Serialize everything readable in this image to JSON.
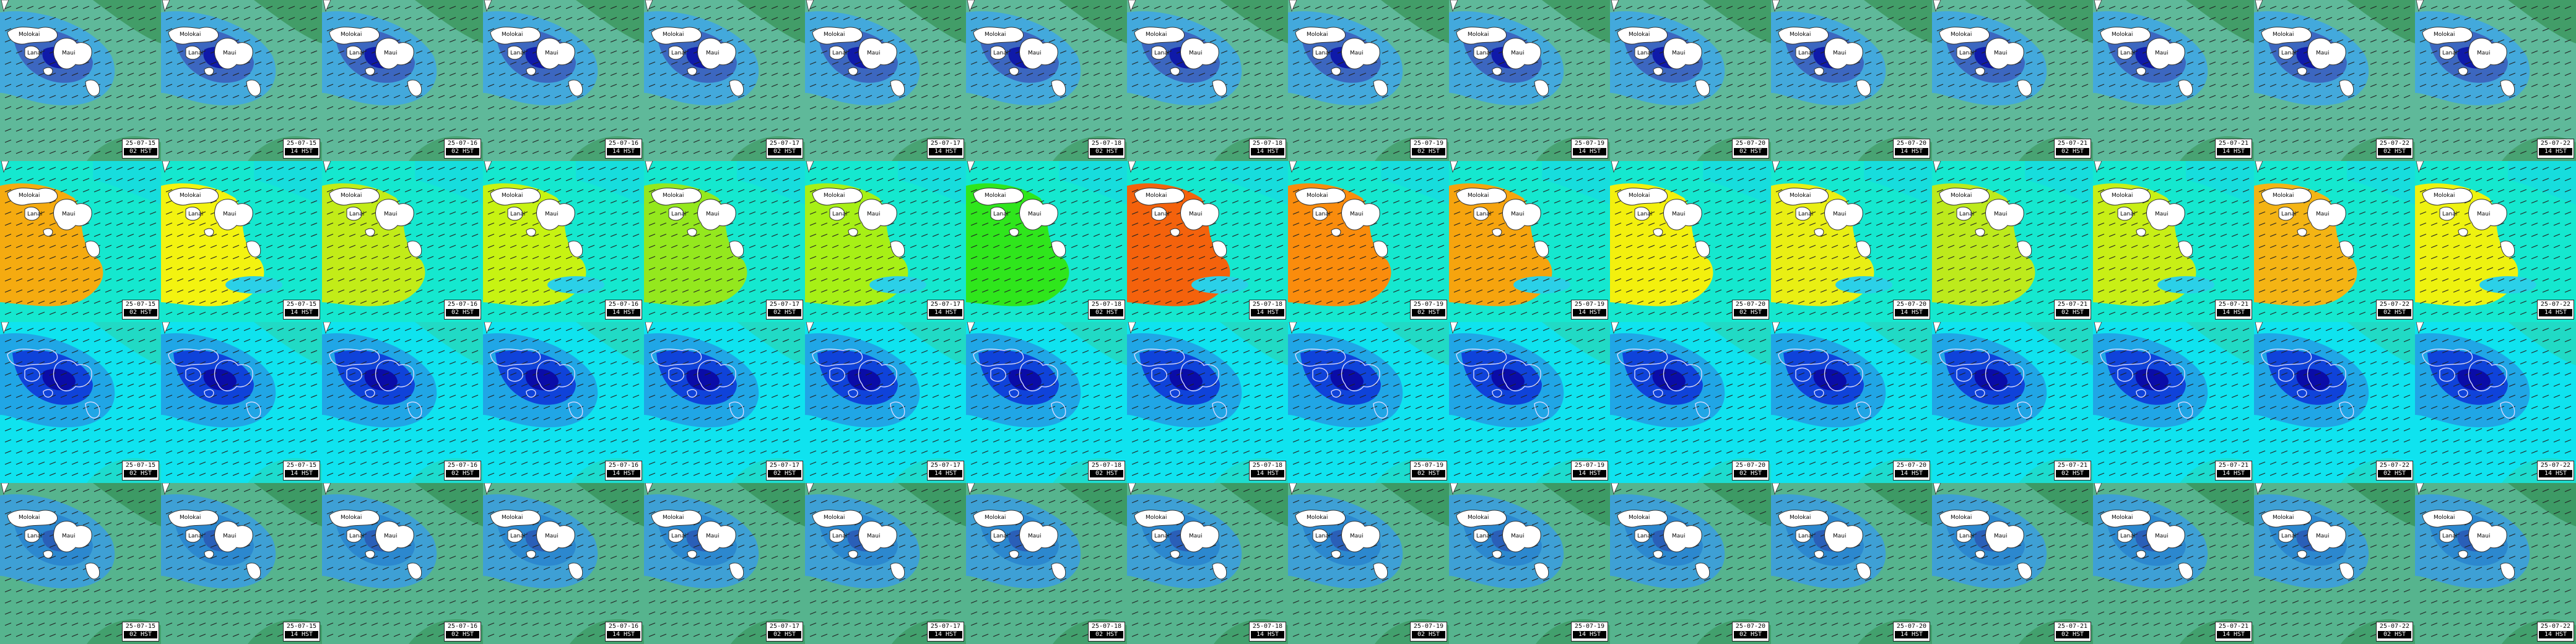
{
  "island_labels": {
    "lanai": "Lanai",
    "molokai": "Molokai",
    "maui": "Maui"
  },
  "timestamps": [
    {
      "date": "25-07-15",
      "hour": "02 HST"
    },
    {
      "date": "25-07-15",
      "hour": "14 HST"
    },
    {
      "date": "25-07-16",
      "hour": "02 HST"
    },
    {
      "date": "25-07-16",
      "hour": "14 HST"
    },
    {
      "date": "25-07-17",
      "hour": "02 HST"
    },
    {
      "date": "25-07-17",
      "hour": "14 HST"
    },
    {
      "date": "25-07-18",
      "hour": "02 HST"
    },
    {
      "date": "25-07-18",
      "hour": "14 HST"
    },
    {
      "date": "25-07-19",
      "hour": "02 HST"
    },
    {
      "date": "25-07-19",
      "hour": "14 HST"
    },
    {
      "date": "25-07-20",
      "hour": "02 HST"
    },
    {
      "date": "25-07-20",
      "hour": "14 HST"
    },
    {
      "date": "25-07-21",
      "hour": "02 HST"
    },
    {
      "date": "25-07-21",
      "hour": "14 HST"
    },
    {
      "date": "25-07-22",
      "hour": "02 HST"
    },
    {
      "date": "25-07-22",
      "hour": "14 HST"
    }
  ],
  "rows": [
    {
      "name": "wave-height",
      "base": "#5fb99a",
      "mid": "#43a9dc",
      "core": "#3c67c0",
      "deep": "#0f1aa9",
      "patch": "#3f9a63"
    },
    {
      "name": "swell-period",
      "base": "#15e8cf",
      "cells": [
        "#f5ab10",
        "#f3f310",
        "#c2ec18",
        "#c7f312",
        "#94e81e",
        "#a7f016",
        "#2fe61c",
        "#f4620c",
        "#fa8c0c",
        "#f6a40e",
        "#f3f00e",
        "#e9ef14",
        "#bdea1c",
        "#c8ef16",
        "#f4b414",
        "#eef210"
      ]
    },
    {
      "name": "wind-speed",
      "base": "#0fe3ef",
      "mid": "#20a6e6",
      "core": "#0f43da",
      "deep": "#0a0ca8",
      "patch": "#23d8c0"
    },
    {
      "name": "wave-height-alt",
      "base": "#56b48e",
      "mid": "#3ea0d5",
      "core": "#2c88cf",
      "deep": "#2a5fb8",
      "patch": "#3b9760"
    }
  ]
}
